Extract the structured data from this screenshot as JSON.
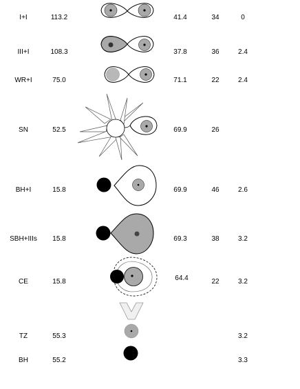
{
  "rows": [
    {
      "label": "I+I",
      "val1": "113.2",
      "val2": "41.4",
      "val3": "34",
      "val4": "0"
    },
    {
      "label": "III+I",
      "val1": "108.3",
      "val2": "37.8",
      "val3": "36",
      "val4": "2.4"
    },
    {
      "label": "WR+I",
      "val1": "75.0",
      "val2": "71.1",
      "val3": "22",
      "val4": "2.4"
    },
    {
      "label": "SN",
      "val1": "52.5",
      "val2": "69.9",
      "val3": "26",
      "val4": ""
    },
    {
      "label": "BH+I",
      "val1": "15.8",
      "val2": "69.9",
      "val3": "46",
      "val4": "2.6"
    },
    {
      "label": "SBH+IIIs",
      "val1": "15.8",
      "val2": "69.3",
      "val3": "38",
      "val4": "3.2"
    },
    {
      "label": "CE",
      "val1": "15.8",
      "val2": "64.4",
      "val3": "22",
      "val4": "3.2"
    },
    {
      "label": "TZ",
      "val1": "55.3",
      "val2": "",
      "val3": "",
      "val4": "3.2"
    },
    {
      "label": "BH",
      "val1": "55.2",
      "val2": "",
      "val3": "",
      "val4": "3.3"
    }
  ],
  "colors": {
    "fill_gray": "#a9a9a9",
    "dark": "#000000",
    "stroke": "#000000",
    "background": "#ffffff"
  }
}
